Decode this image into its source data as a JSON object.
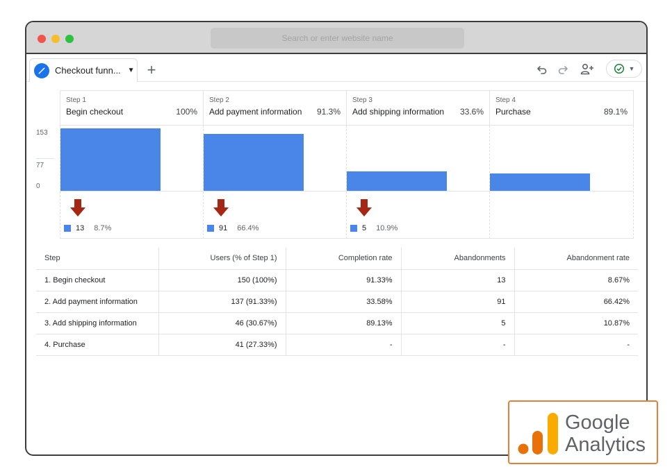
{
  "browser": {
    "url_placeholder": "Search or enter website name"
  },
  "tabs": {
    "active_label": "Checkout funn...",
    "add_label": "+"
  },
  "funnel": {
    "steps": [
      {
        "num": "Step 1",
        "name": "Begin checkout",
        "pct": "100%",
        "users": 150
      },
      {
        "num": "Step 2",
        "name": "Add payment information",
        "pct": "91.3%",
        "users": 137
      },
      {
        "num": "Step 3",
        "name": "Add shipping information",
        "pct": "33.6%",
        "users": 46
      },
      {
        "num": "Step 4",
        "name": "Purchase",
        "pct": "89.1%",
        "users": 41
      }
    ],
    "y_ticks": [
      "153",
      "77",
      "0"
    ],
    "y_max": 153,
    "drops": [
      {
        "count": "13",
        "rate": "8.7%"
      },
      {
        "count": "91",
        "rate": "66.4%"
      },
      {
        "count": "5",
        "rate": "10.9%"
      }
    ],
    "bar_color": "#4a86e8",
    "arrow_color": "#a52714"
  },
  "table": {
    "headers": [
      "Step",
      "Users (% of Step 1)",
      "Completion rate",
      "Abandonments",
      "Abandonment rate"
    ],
    "rows": [
      [
        "1. Begin checkout",
        "150 (100%)",
        "91.33%",
        "13",
        "8.67%"
      ],
      [
        "2. Add payment information",
        "137 (91.33%)",
        "33.58%",
        "91",
        "66.42%"
      ],
      [
        "3. Add shipping information",
        "46 (30.67%)",
        "89.13%",
        "5",
        "10.87%"
      ],
      [
        "4. Purchase",
        "41 (27.33%)",
        "-",
        "-",
        "-"
      ]
    ]
  },
  "logo": {
    "line1": "Google",
    "line2": "Analytics"
  },
  "icons": {
    "tab": "pencil-icon",
    "undo": "undo-icon",
    "redo": "redo-icon",
    "share": "add-person-icon",
    "status": "check-circle-icon"
  }
}
